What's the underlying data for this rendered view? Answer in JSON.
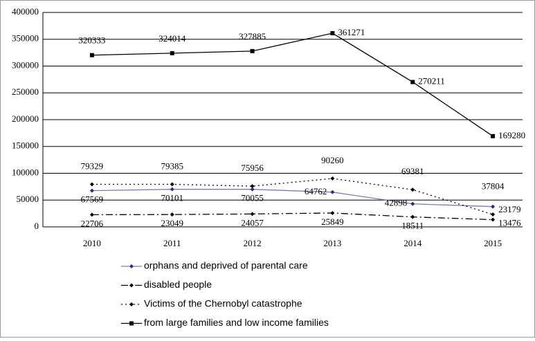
{
  "chart_data": {
    "type": "line",
    "categories": [
      "2010",
      "2011",
      "2012",
      "2013",
      "2014",
      "2015"
    ],
    "series": [
      {
        "name": "orphans and deprived of parental care",
        "color": "#1f2f8a",
        "line_color": "#7a7ab8",
        "dash": "solid",
        "values": [
          67569,
          70101,
          70055,
          64762,
          42898,
          37804
        ]
      },
      {
        "name": "disabled people",
        "color": "#000000",
        "line_color": "#000000",
        "dash": "dashdot",
        "values": [
          22706,
          23049,
          24057,
          25849,
          18511,
          13476
        ]
      },
      {
        "name": "Victims of the Chernobyl catastrophe",
        "color": "#000000",
        "line_color": "#000000",
        "dash": "dotted",
        "values": [
          79329,
          79385,
          75956,
          90260,
          69381,
          23179
        ]
      },
      {
        "name": "from large families and low income families",
        "color": "#000000",
        "line_color": "#000000",
        "dash": "solid",
        "values": [
          320333,
          324014,
          327885,
          361271,
          270211,
          169280
        ]
      }
    ],
    "ylim": [
      0,
      400000
    ],
    "yticks": [
      0,
      50000,
      100000,
      150000,
      200000,
      250000,
      300000,
      350000,
      400000
    ],
    "grid": true
  }
}
